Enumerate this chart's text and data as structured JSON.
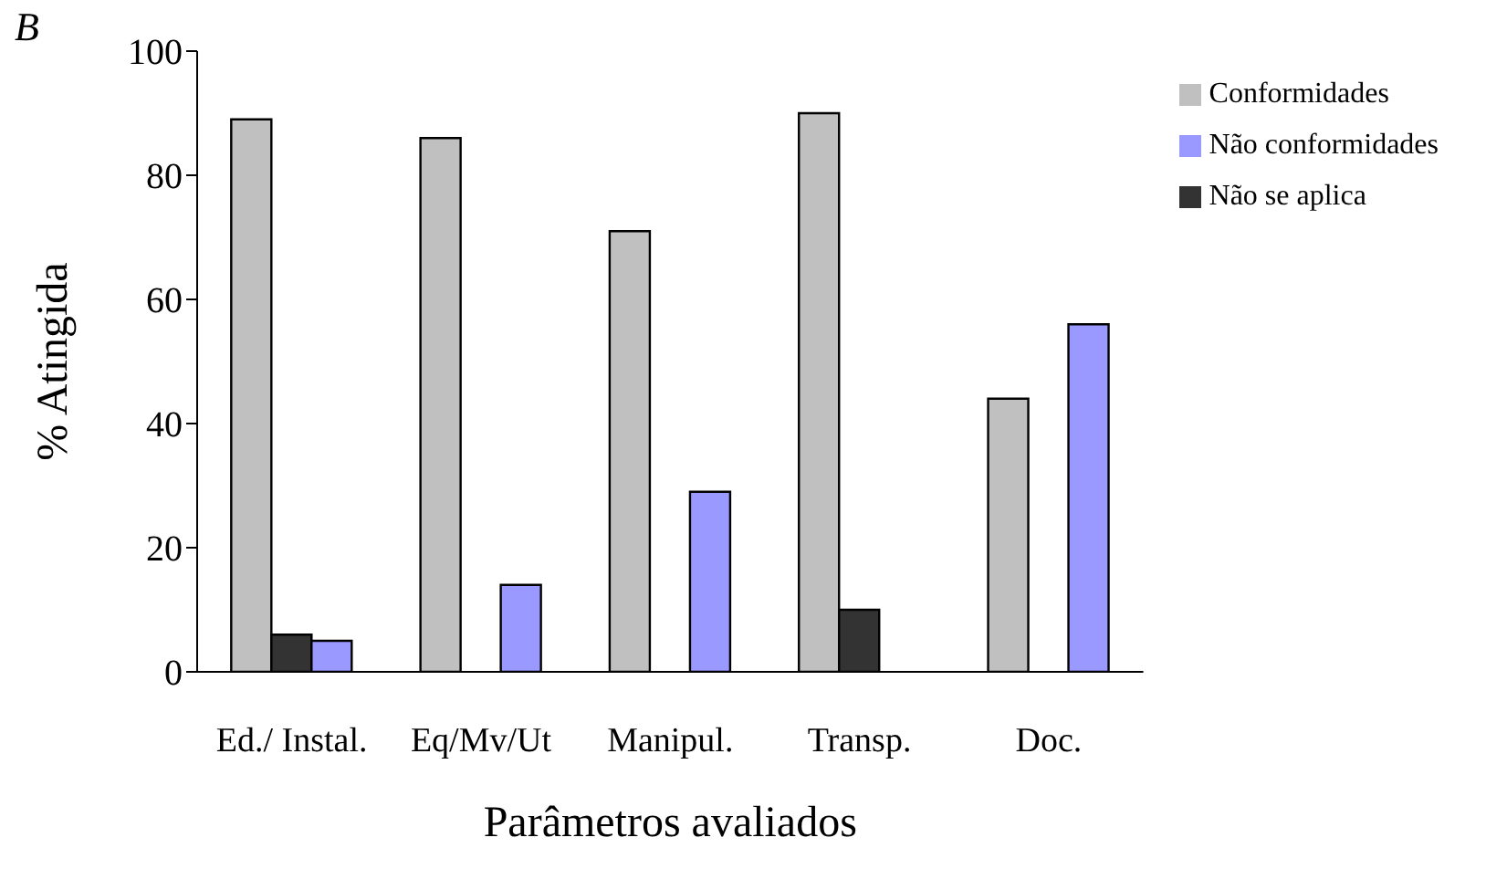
{
  "chart_data": {
    "type": "bar",
    "title": "B",
    "xlabel": "Parâmetros avaliados",
    "ylabel": "% Atingida",
    "categories": [
      "Ed./ Instal.",
      "Eq/Mv/Ut",
      "Manipul.",
      "Transp.",
      "Doc."
    ],
    "series": [
      {
        "name": "Conformidades",
        "color": "#c0c0c0",
        "values": [
          89,
          86,
          71,
          90,
          44
        ]
      },
      {
        "name": "Não se aplica",
        "color": "#333333",
        "values": [
          6,
          0,
          0,
          10,
          0
        ]
      },
      {
        "name": "Não conformidades",
        "color": "#9999ff",
        "values": [
          5,
          14,
          29,
          0,
          56
        ]
      }
    ],
    "ylim": [
      0,
      100
    ],
    "yticks": [
      0,
      20,
      40,
      60,
      80,
      100
    ],
    "grid": false,
    "legend": "top right"
  }
}
